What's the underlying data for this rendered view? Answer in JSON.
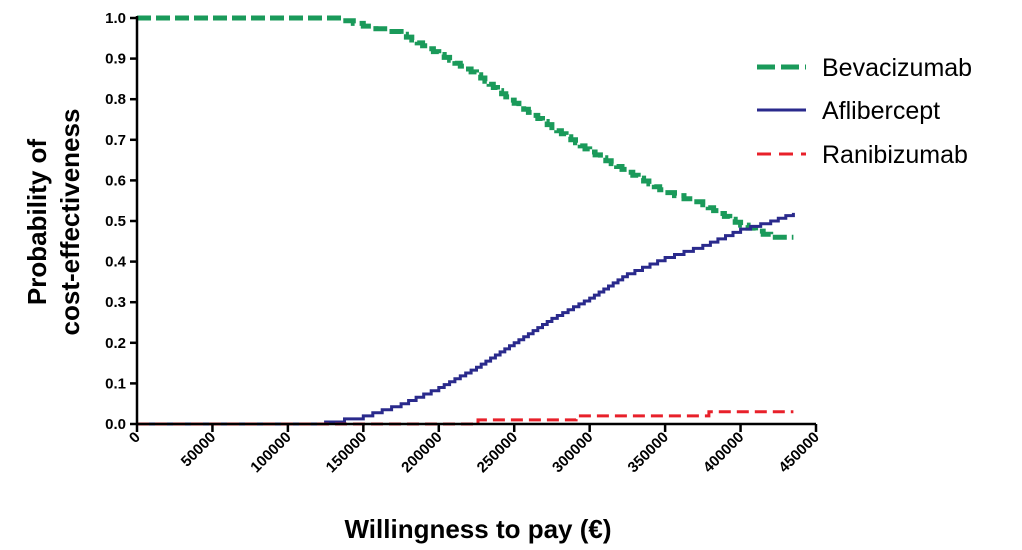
{
  "chart_data": {
    "type": "line",
    "title": "",
    "xlabel": "Willingness to pay (€)",
    "ylabel_lines": [
      "Probability of",
      "cost-effectiveness"
    ],
    "xlim": [
      0,
      450000
    ],
    "ylim": [
      0,
      1.0
    ],
    "x_ticks": [
      "0",
      "50000",
      "100000",
      "150000",
      "200000",
      "250000",
      "300000",
      "350000",
      "400000",
      "450000"
    ],
    "y_ticks": [
      "0.0",
      "0.1",
      "0.2",
      "0.3",
      "0.4",
      "0.5",
      "0.6",
      "0.7",
      "0.8",
      "0.9",
      "1.0"
    ],
    "grid": false,
    "legend_position": "top-right",
    "series": [
      {
        "name": "Bevacizumab",
        "color": "#1a9a5a",
        "style": "dashed",
        "x": [
          0,
          130000,
          150000,
          175000,
          200000,
          225000,
          250000,
          275000,
          300000,
          325000,
          350000,
          375000,
          400000,
          420000,
          435000
        ],
        "y": [
          1.0,
          1.0,
          0.98,
          0.96,
          0.91,
          0.86,
          0.79,
          0.73,
          0.67,
          0.62,
          0.57,
          0.54,
          0.49,
          0.46,
          0.46
        ]
      },
      {
        "name": "Aflibercept",
        "color": "#2a2a8c",
        "style": "solid",
        "x": [
          0,
          125000,
          150000,
          175000,
          200000,
          225000,
          250000,
          275000,
          300000,
          325000,
          350000,
          375000,
          400000,
          420000,
          435000
        ],
        "y": [
          0.0,
          0.005,
          0.02,
          0.05,
          0.09,
          0.14,
          0.2,
          0.26,
          0.31,
          0.37,
          0.41,
          0.44,
          0.48,
          0.5,
          0.52
        ]
      },
      {
        "name": "Ranibizumab",
        "color": "#e8202a",
        "style": "dashed",
        "x": [
          0,
          225000,
          226000,
          290000,
          291000,
          378000,
          379000,
          435000
        ],
        "y": [
          0.0,
          0.0,
          0.01,
          0.01,
          0.02,
          0.02,
          0.03,
          0.03
        ]
      }
    ]
  }
}
